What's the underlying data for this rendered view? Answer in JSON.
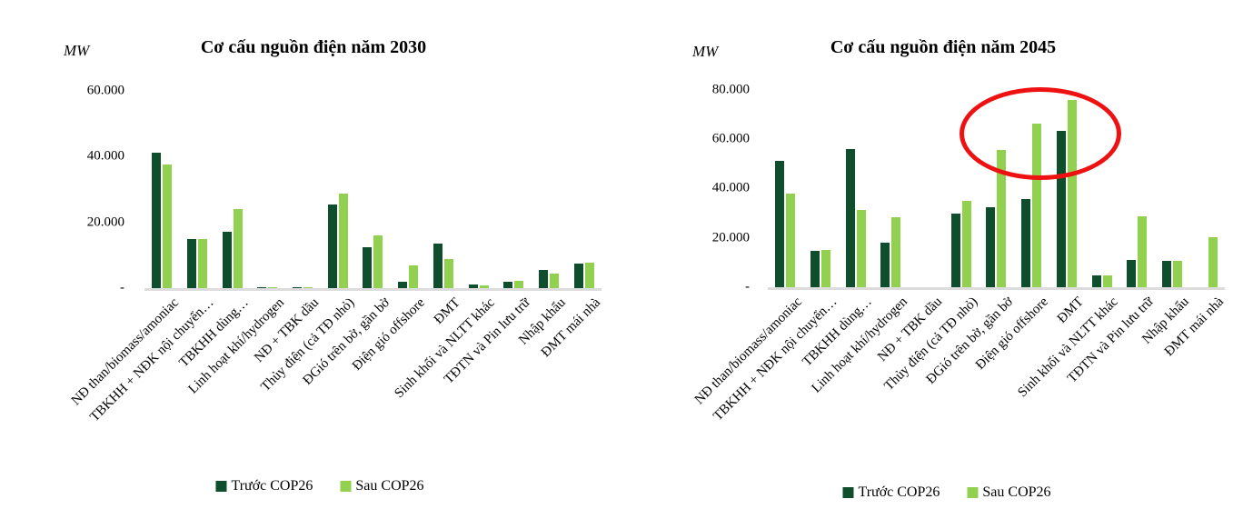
{
  "page": {
    "background": "#ffffff"
  },
  "colors": {
    "series_before": "#0e4e2d",
    "series_after": "#92d14f",
    "axis_line": "#dcdcdc",
    "annotation_red": "#ee1111",
    "text": "#000000"
  },
  "annotation": {
    "shape": "ellipse",
    "color": "#ee1111",
    "on_chart": "Cơ cấu nguồn điện năm 2045",
    "highlights_categories": [
      "ĐGió trên bờ, gần bờ",
      "Điện gió offshore",
      "ĐMT"
    ]
  },
  "chart_data": [
    {
      "type": "bar",
      "title": "Cơ cấu nguồn điện năm 2030",
      "ylabel": "MW",
      "xlabel": "",
      "ylim": [
        0,
        64000
      ],
      "grid": false,
      "legend_position": "bottom",
      "yticks": [
        {
          "label": "60.000",
          "value": 60000
        },
        {
          "label": "40.000",
          "value": 40000
        },
        {
          "label": "20.000",
          "value": 20000
        },
        {
          "label": "-",
          "value": 0
        }
      ],
      "categories": [
        "NĐ than/biomass/amoniac",
        "TBKHH + NĐK nội chuyển…",
        "TBKHH dùng…",
        "Linh hoạt khí/hydrogen",
        "NĐ + TBK dầu",
        "Thủy điện (cả TĐ nhỏ)",
        "ĐGió trên bờ, gần bờ",
        "Điện gió offshore",
        "ĐMT",
        "Sinh khối và NLTT khác",
        "TĐTN và Pin lưu trữ",
        "Nhập khẩu",
        "ĐMT mái nhà"
      ],
      "series": [
        {
          "name": "Trước COP26",
          "color": "#0e4e2d",
          "values": [
            41000,
            15000,
            17000,
            300,
            100,
            25300,
            12500,
            2000,
            13500,
            1100,
            2000,
            5500,
            7500
          ]
        },
        {
          "name": "Sau COP26",
          "color": "#92d14f",
          "values": [
            37500,
            14800,
            24000,
            200,
            100,
            28700,
            16000,
            7000,
            8800,
            800,
            2100,
            4500,
            7600
          ]
        }
      ]
    },
    {
      "type": "bar",
      "title": "Cơ cấu nguồn điện năm 2045",
      "ylabel": "MW",
      "xlabel": "",
      "ylim": [
        0,
        85000
      ],
      "grid": false,
      "legend_position": "bottom",
      "yticks": [
        {
          "label": "80.000",
          "value": 80000
        },
        {
          "label": "60.000",
          "value": 60000
        },
        {
          "label": "40.000",
          "value": 40000
        },
        {
          "label": "20.000",
          "value": 20000
        },
        {
          "label": "-",
          "value": 0
        }
      ],
      "categories": [
        "NĐ than/biomass/amoniac",
        "TBKHH + NĐK nội chuyển…",
        "TBKHH dùng…",
        "Linh hoạt khí/hydrogen",
        "NĐ + TBK dầu",
        "Thủy điện (cả TĐ nhỏ)",
        "ĐGió trên bờ, gần bờ",
        "Điện gió offshore",
        "ĐMT",
        "Sinh khối và NLTT khác",
        "TĐTN và Pin lưu trữ",
        "Nhập khẩu",
        "ĐMT mái nhà"
      ],
      "series": [
        {
          "name": "Trước COP26",
          "color": "#0e4e2d",
          "values": [
            51000,
            14700,
            55800,
            17900,
            0,
            29800,
            32300,
            35700,
            63400,
            4900,
            11000,
            10800,
            0
          ]
        },
        {
          "name": "Sau COP26",
          "color": "#92d14f",
          "values": [
            37800,
            15100,
            31400,
            28300,
            0,
            35100,
            55600,
            66300,
            75900,
            4700,
            28800,
            10800,
            20300
          ]
        }
      ]
    }
  ]
}
